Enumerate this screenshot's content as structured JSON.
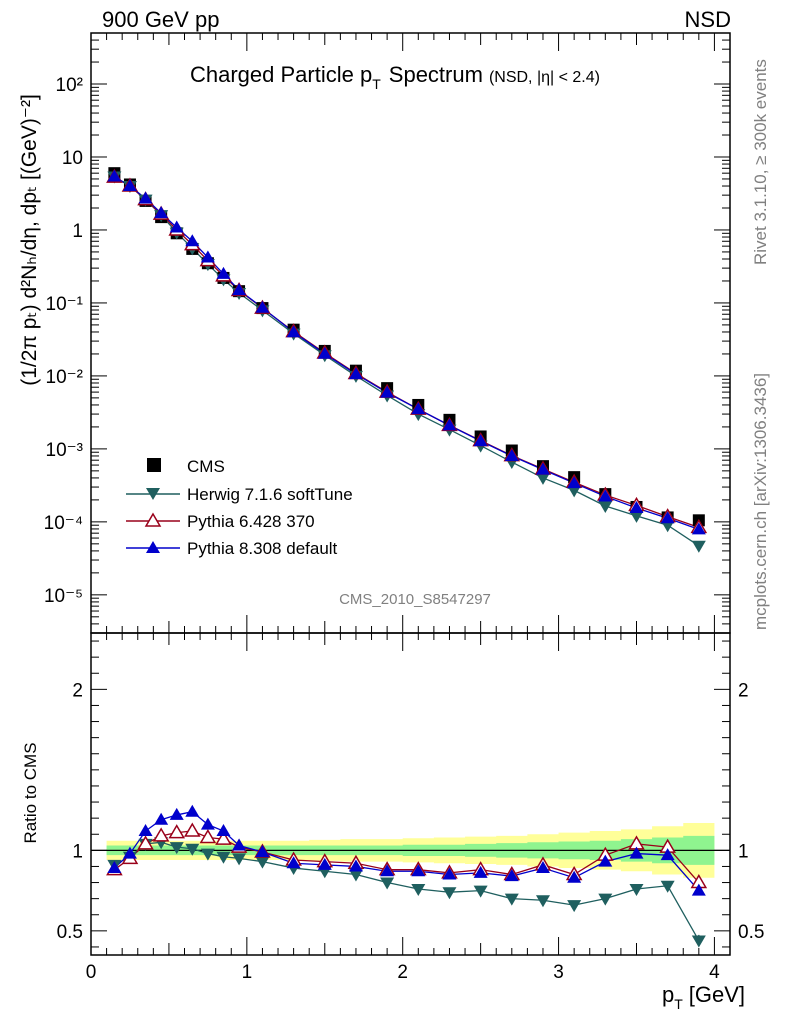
{
  "header": {
    "left": "900 GeV pp",
    "right": "NSD"
  },
  "side_text": {
    "top": "Rivet 3.1.10, ≥ 300k events",
    "bottom": "mcplots.cern.ch [arXiv:1306.3436]"
  },
  "analysis_label": "CMS_2010_S8547297",
  "colors": {
    "cms": "#000000",
    "herwig": "#1f5f5f",
    "pythia6": "#99001a",
    "pythia8": "#0000cc",
    "band_outer": "#ffff99",
    "band_inner": "#8ff48f"
  },
  "chart_data": [
    {
      "type": "line",
      "title": "Charged Particle pₜ Spectrum",
      "title_main": "Charged Particle p",
      "title_sub": "T",
      "title_tail": "Spectrum",
      "title_extra": "(NSD, |η| < 2.4)",
      "ylabel": "(1/2π pₜ) d²Nₕ/dη, dpₜ [(GeV)⁻²]",
      "yscale": "log",
      "ylim": [
        3e-06,
        500
      ],
      "xlim": [
        0,
        4.1
      ],
      "ytick_labels": [
        "10⁻⁵",
        "10⁻⁴",
        "10⁻³",
        "10⁻²",
        "10⁻¹",
        "1",
        "10",
        "10²"
      ],
      "x": [
        0.15,
        0.25,
        0.35,
        0.45,
        0.55,
        0.65,
        0.75,
        0.85,
        0.95,
        1.1,
        1.3,
        1.5,
        1.7,
        1.9,
        2.1,
        2.3,
        2.5,
        2.7,
        2.9,
        3.1,
        3.3,
        3.5,
        3.7,
        3.9
      ],
      "series": [
        {
          "name": "CMS",
          "key": "cms",
          "values": [
            6.0,
            4.2,
            2.5,
            1.5,
            0.9,
            0.55,
            0.35,
            0.22,
            0.145,
            0.085,
            0.043,
            0.022,
            0.0118,
            0.0068,
            0.004,
            0.0025,
            0.00148,
            0.00095,
            0.00058,
            0.00041,
            0.00024,
            0.00016,
            0.000115,
            0.000105
          ]
        },
        {
          "name": "Herwig 7.1.6 softTune",
          "key": "herwig",
          "values": [
            5.4,
            4.0,
            2.6,
            1.6,
            0.92,
            0.56,
            0.34,
            0.21,
            0.137,
            0.079,
            0.038,
            0.0192,
            0.01,
            0.0054,
            0.003,
            0.00184,
            0.00111,
            0.00066,
            0.0004,
            0.00027,
            0.000165,
            0.000121,
            9e-05,
            4.7e-05
          ]
        },
        {
          "name": "Pythia 6.428 370",
          "key": "pythia6",
          "values": [
            5.3,
            4.0,
            2.6,
            1.65,
            1.0,
            0.63,
            0.38,
            0.235,
            0.148,
            0.085,
            0.0405,
            0.0206,
            0.0108,
            0.006,
            0.0035,
            0.0021,
            0.0013,
            0.00081,
            0.00053,
            0.00035,
            0.000233,
            0.000168,
            0.000118,
            8.4e-05
          ]
        },
        {
          "name": "Pythia 8.308 default",
          "key": "pythia8",
          "values": [
            5.4,
            4.0,
            2.7,
            1.7,
            1.08,
            0.7,
            0.42,
            0.25,
            0.15,
            0.086,
            0.0397,
            0.0201,
            0.0106,
            0.0059,
            0.0035,
            0.0021,
            0.00128,
            0.0008,
            0.00052,
            0.00034,
            0.000223,
            0.000155,
            0.000112,
            7.9e-05
          ]
        }
      ]
    },
    {
      "type": "line",
      "ylabel": "Ratio to CMS",
      "xlabel": "pₜ [GeV]",
      "xlabel_main": "p",
      "xlabel_sub": "T",
      "xlabel_unit": "[GeV]",
      "ylim": [
        0.35,
        2.35
      ],
      "xlim": [
        0,
        4.1
      ],
      "ytick_labels": [
        "0.5",
        "1",
        "2"
      ],
      "xtick_labels": [
        "0",
        "1",
        "2",
        "3",
        "4"
      ],
      "x": [
        0.15,
        0.25,
        0.35,
        0.45,
        0.55,
        0.65,
        0.75,
        0.85,
        0.95,
        1.1,
        1.3,
        1.5,
        1.7,
        1.9,
        2.1,
        2.3,
        2.5,
        2.7,
        2.9,
        3.1,
        3.3,
        3.5,
        3.7,
        3.9
      ],
      "band_inner": [
        0.03,
        0.03,
        0.03,
        0.03,
        0.03,
        0.03,
        0.03,
        0.03,
        0.03,
        0.03,
        0.03,
        0.03,
        0.03,
        0.03,
        0.035,
        0.035,
        0.04,
        0.045,
        0.05,
        0.055,
        0.06,
        0.07,
        0.08,
        0.09
      ],
      "band_outer": [
        0.06,
        0.06,
        0.06,
        0.06,
        0.06,
        0.06,
        0.06,
        0.06,
        0.06,
        0.06,
        0.06,
        0.065,
        0.07,
        0.07,
        0.075,
        0.08,
        0.085,
        0.09,
        0.1,
        0.11,
        0.12,
        0.13,
        0.15,
        0.17
      ],
      "series": [
        {
          "name": "Herwig 7.1.6 softTune",
          "key": "herwig",
          "values": [
            0.91,
            0.96,
            1.04,
            1.05,
            1.02,
            1.01,
            0.98,
            0.96,
            0.95,
            0.93,
            0.89,
            0.87,
            0.85,
            0.8,
            0.76,
            0.74,
            0.75,
            0.7,
            0.69,
            0.66,
            0.7,
            0.76,
            0.78,
            0.44
          ]
        },
        {
          "name": "Pythia 6.428 370",
          "key": "pythia6",
          "values": [
            0.88,
            0.95,
            1.04,
            1.09,
            1.11,
            1.12,
            1.08,
            1.07,
            1.02,
            0.99,
            0.94,
            0.93,
            0.92,
            0.88,
            0.88,
            0.86,
            0.88,
            0.85,
            0.91,
            0.85,
            0.97,
            1.04,
            1.02,
            0.8
          ]
        },
        {
          "name": "Pythia 8.308 default",
          "key": "pythia8",
          "values": [
            0.89,
            0.98,
            1.12,
            1.19,
            1.22,
            1.24,
            1.16,
            1.12,
            1.03,
            0.99,
            0.92,
            0.91,
            0.9,
            0.87,
            0.87,
            0.85,
            0.86,
            0.84,
            0.89,
            0.83,
            0.93,
            0.98,
            0.97,
            0.75
          ]
        }
      ]
    }
  ]
}
